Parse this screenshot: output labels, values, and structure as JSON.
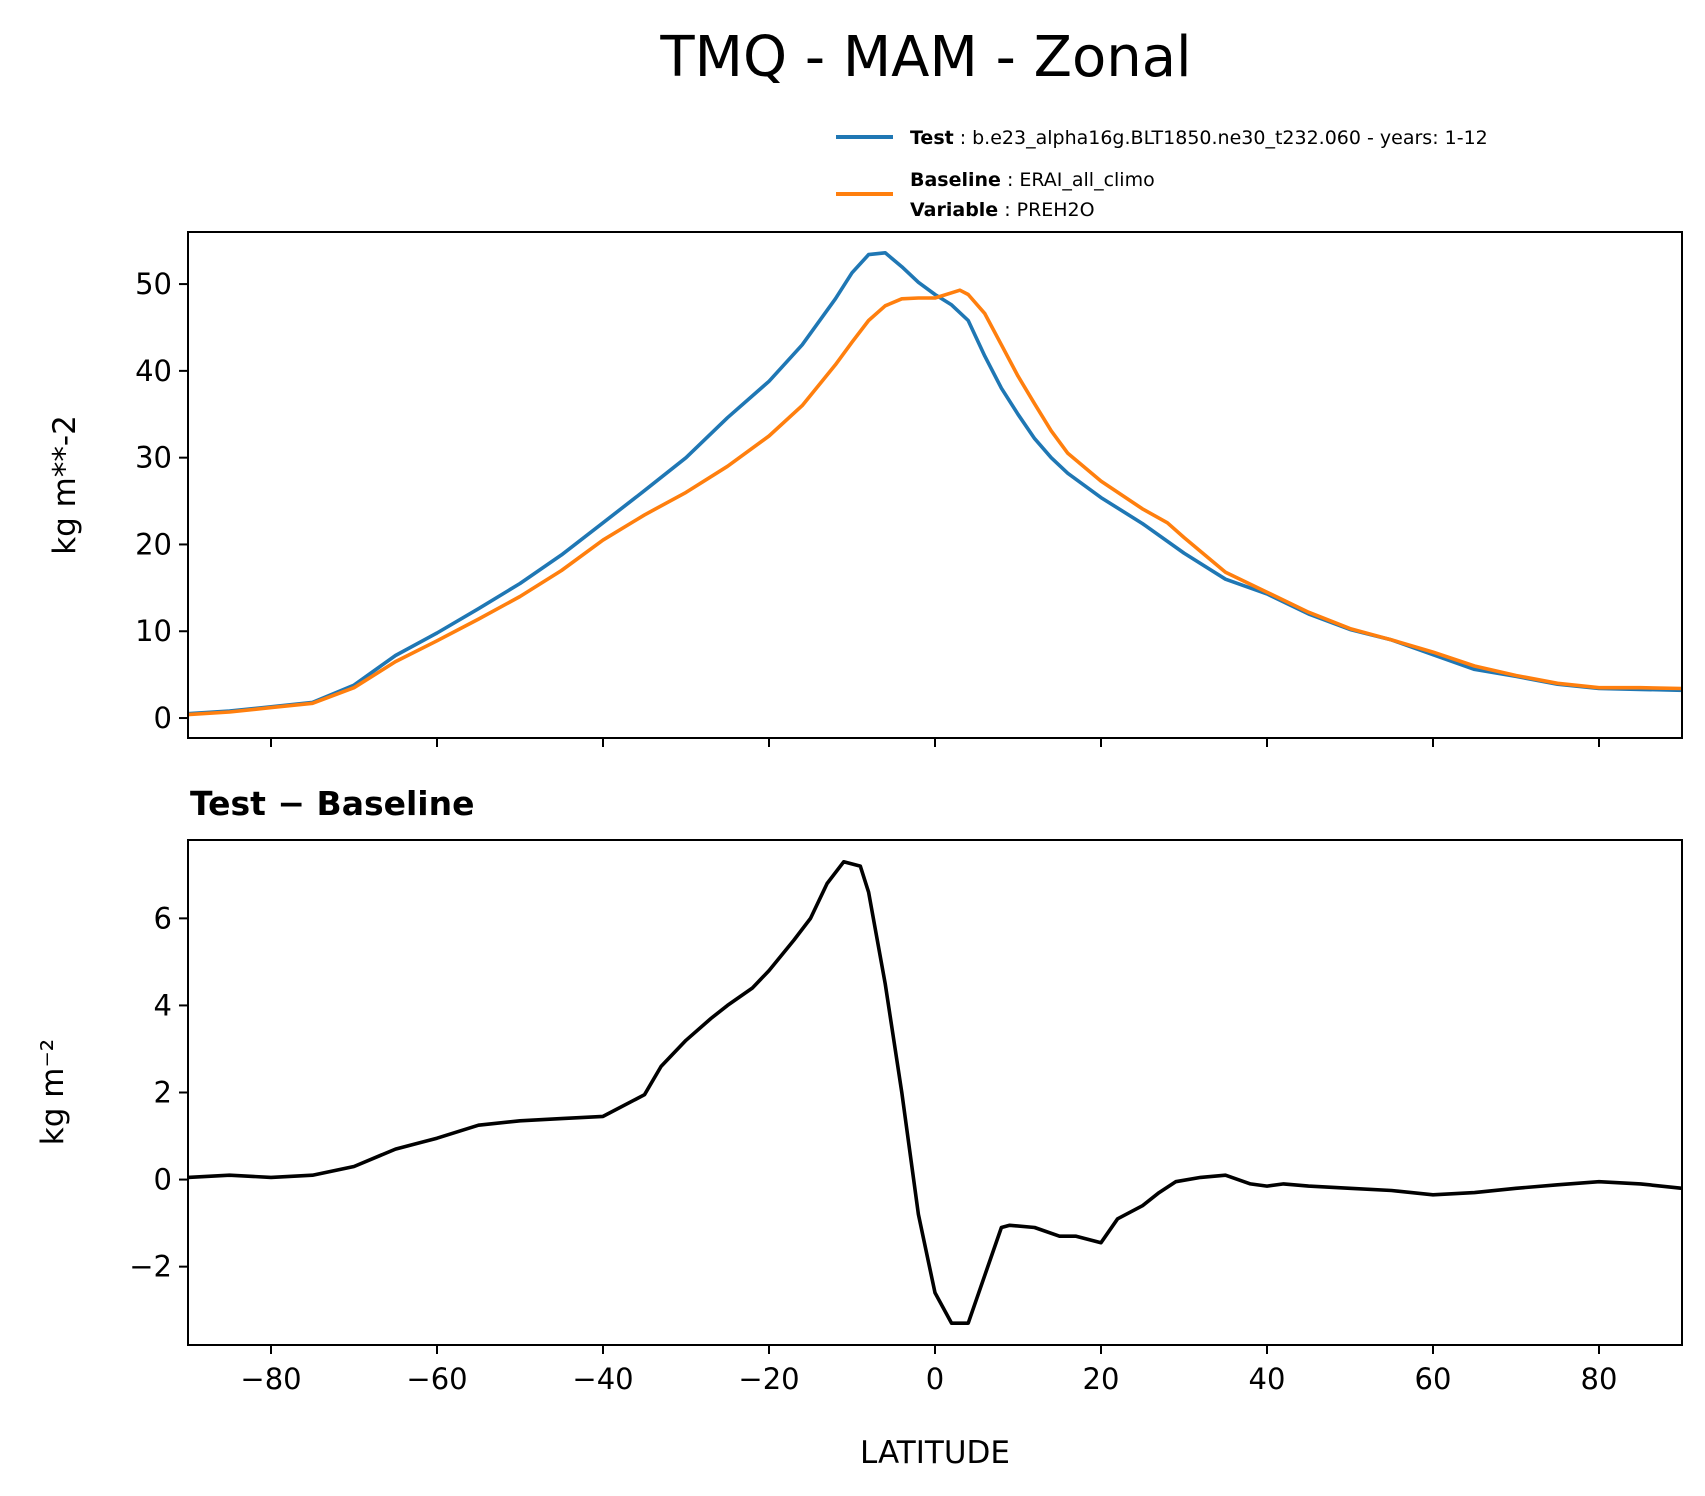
{
  "title": "TMQ - MAM - Zonal",
  "legend": {
    "test_label": "Test",
    "test_value": "b.e23_alpha16g.BLT1850.ne30_t232.060 - years: 1-12",
    "baseline_label": "Baseline",
    "baseline_value": "ERAI_all_climo",
    "variable_label": "Variable",
    "variable_value": "PREH2O",
    "sep": ":"
  },
  "chart_data": [
    {
      "type": "line",
      "title": "",
      "xlabel": "",
      "ylabel": "kg m**-2",
      "xlim": [
        -90,
        90
      ],
      "ylim": [
        -2.3,
        56
      ],
      "yticks": [
        0,
        10,
        20,
        30,
        40,
        50
      ],
      "ytick_labels": [
        "0",
        "10",
        "20",
        "30",
        "40",
        "50"
      ],
      "xticks": [
        -80,
        -60,
        -40,
        -20,
        0,
        20,
        40,
        60,
        80
      ],
      "series": [
        {
          "name": "Test",
          "color": "#1f77b4",
          "x": [
            -90,
            -85,
            -80,
            -75,
            -70,
            -65,
            -60,
            -55,
            -50,
            -45,
            -40,
            -35,
            -30,
            -25,
            -20,
            -16,
            -12,
            -10,
            -8,
            -6,
            -4,
            -2,
            0,
            2,
            4,
            6,
            8,
            10,
            12,
            14,
            16,
            20,
            25,
            30,
            35,
            40,
            45,
            50,
            55,
            60,
            65,
            70,
            75,
            80,
            85,
            90
          ],
          "values": [
            0.5,
            0.8,
            1.3,
            1.8,
            3.8,
            7.2,
            9.8,
            12.6,
            15.5,
            18.8,
            22.5,
            26.2,
            30.0,
            34.6,
            38.8,
            43.0,
            48.3,
            51.3,
            53.4,
            53.6,
            52.0,
            50.2,
            48.8,
            47.6,
            45.8,
            41.7,
            38.0,
            35.0,
            32.2,
            30.0,
            28.2,
            25.4,
            22.4,
            19.0,
            16.0,
            14.3,
            12.0,
            10.2,
            9.0,
            7.3,
            5.6,
            4.8,
            3.9,
            3.4,
            3.3,
            3.2
          ]
        },
        {
          "name": "Baseline",
          "color": "#ff7f0e",
          "x": [
            -90,
            -85,
            -80,
            -75,
            -70,
            -65,
            -60,
            -55,
            -50,
            -45,
            -40,
            -35,
            -30,
            -25,
            -20,
            -16,
            -12,
            -10,
            -8,
            -6,
            -4,
            -2,
            0,
            2,
            3,
            4,
            6,
            8,
            10,
            12,
            14,
            16,
            20,
            25,
            28,
            30,
            35,
            40,
            45,
            50,
            55,
            60,
            65,
            70,
            75,
            80,
            85,
            90
          ],
          "values": [
            0.4,
            0.7,
            1.2,
            1.7,
            3.5,
            6.5,
            8.9,
            11.4,
            14.0,
            17.0,
            20.5,
            23.4,
            26.0,
            29.0,
            32.5,
            36.0,
            40.7,
            43.3,
            45.8,
            47.5,
            48.3,
            48.4,
            48.4,
            49.0,
            49.3,
            48.8,
            46.6,
            43.0,
            39.4,
            36.2,
            33.1,
            30.5,
            27.3,
            24.1,
            22.5,
            20.8,
            16.8,
            14.5,
            12.2,
            10.3,
            9.0,
            7.6,
            6.0,
            4.9,
            4.0,
            3.5,
            3.5,
            3.4
          ]
        }
      ]
    },
    {
      "type": "line",
      "title": "Test − Baseline",
      "xlabel": "LATITUDE",
      "ylabel": "kg m⁻²",
      "xlim": [
        -90,
        90
      ],
      "ylim": [
        -3.8,
        7.8
      ],
      "yticks": [
        -2,
        0,
        2,
        4,
        6
      ],
      "ytick_labels": [
        "−2",
        "0",
        "2",
        "4",
        "6"
      ],
      "xticks": [
        -80,
        -60,
        -40,
        -20,
        0,
        20,
        40,
        60,
        80
      ],
      "xtick_labels": [
        "−80",
        "−60",
        "−40",
        "−20",
        "0",
        "20",
        "40",
        "60",
        "80"
      ],
      "series": [
        {
          "name": "Test − Baseline",
          "color": "#000000",
          "x": [
            -90,
            -85,
            -80,
            -75,
            -70,
            -65,
            -60,
            -55,
            -50,
            -45,
            -40,
            -35,
            -33,
            -30,
            -27,
            -25,
            -22,
            -20,
            -17,
            -15,
            -13,
            -11,
            -9,
            -8,
            -6,
            -4,
            -2,
            0,
            2,
            4,
            6,
            8,
            9,
            12,
            15,
            17,
            20,
            22,
            25,
            27,
            29,
            32,
            35,
            38,
            40,
            42,
            45,
            50,
            55,
            60,
            65,
            70,
            75,
            80,
            85,
            90
          ],
          "values": [
            0.05,
            0.1,
            0.05,
            0.1,
            0.3,
            0.7,
            0.95,
            1.25,
            1.35,
            1.4,
            1.45,
            1.95,
            2.6,
            3.2,
            3.7,
            4.0,
            4.4,
            4.8,
            5.5,
            6.0,
            6.8,
            7.3,
            7.2,
            6.6,
            4.5,
            2.0,
            -0.8,
            -2.6,
            -3.3,
            -3.3,
            -2.2,
            -1.1,
            -1.05,
            -1.1,
            -1.3,
            -1.3,
            -1.45,
            -0.9,
            -0.6,
            -0.3,
            -0.05,
            0.05,
            0.1,
            -0.1,
            -0.15,
            -0.1,
            -0.15,
            -0.2,
            -0.25,
            -0.35,
            -0.3,
            -0.2,
            -0.12,
            -0.05,
            -0.1,
            -0.2
          ]
        }
      ]
    }
  ]
}
